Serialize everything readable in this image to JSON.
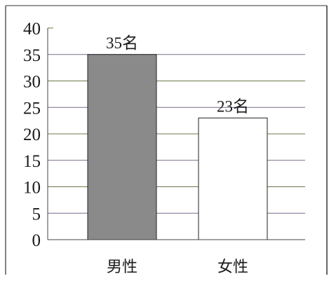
{
  "chart_data": {
    "type": "bar",
    "categories": [
      "男性",
      "女性"
    ],
    "values": [
      35,
      23
    ],
    "data_labels": [
      "35名",
      "23名"
    ],
    "ylim": [
      0,
      40
    ],
    "yticks": [
      0,
      5,
      10,
      15,
      20,
      25,
      30,
      35,
      40
    ],
    "ytick_labels": [
      "0",
      "5",
      "10",
      "15",
      "20",
      "25",
      "30",
      "35",
      "40"
    ],
    "grid": true,
    "title": "",
    "xlabel": "",
    "ylabel": "",
    "colors": {
      "bar_fill": [
        "#8a8a8a",
        "#ffffff"
      ],
      "bar_stroke": "#222222",
      "grid_major": "#6a7a4a",
      "grid_minor": "#7a6a8a",
      "axis": "#444444",
      "frame": "#333333"
    }
  }
}
